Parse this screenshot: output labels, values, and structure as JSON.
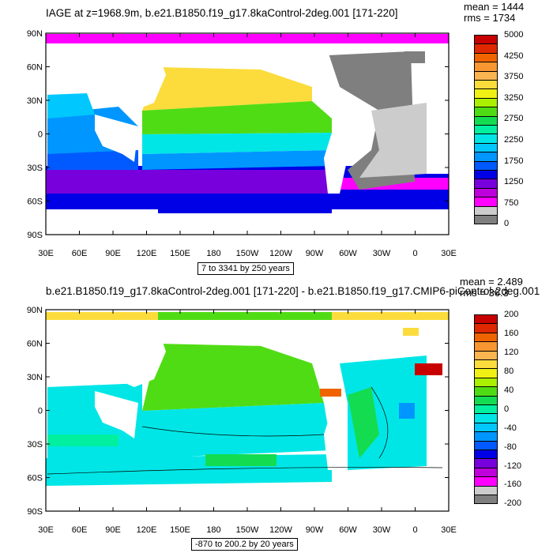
{
  "top": {
    "title": "IAGE at z=1968.9m, b.e21.B1850.f19_g17.8kaControl-2deg.001 [171-220]",
    "stats": {
      "mean": "mean = 1444",
      "rms": "rms = 1734"
    },
    "range_label": "7 to 3341 by 250 years",
    "colorbar": {
      "labels": [
        "5000",
        "4250",
        "3750",
        "3250",
        "2750",
        "2250",
        "1750",
        "1250",
        "750",
        "0"
      ],
      "colors": [
        "#c80000",
        "#e02800",
        "#f06400",
        "#f89632",
        "#fab450",
        "#fcdc3c",
        "#f0f014",
        "#aaf000",
        "#50dc14",
        "#14dc50",
        "#00f0a0",
        "#00e6e6",
        "#00c8ff",
        "#0096ff",
        "#005aff",
        "#0000e6",
        "#7800dc",
        "#be00dc",
        "#ff00ff",
        "#cccccc",
        "#7f7f7f"
      ]
    }
  },
  "bottom": {
    "title": "b.e21.B1850.f19_g17.8kaControl-2deg.001 [171-220] - b.e21.B1850.f19_g17.CMIP6-piControl-2deg.001",
    "stats": {
      "mean": "mean = 2.489",
      "rms": "rms = 36.3"
    },
    "range_label": "-870 to 200.2 by 20 years",
    "colorbar": {
      "labels": [
        "200",
        "160",
        "120",
        "80",
        "40",
        "0",
        "-40",
        "-80",
        "-120",
        "-160",
        "-200"
      ],
      "colors": [
        "#c80000",
        "#e02800",
        "#f06400",
        "#f89632",
        "#fab450",
        "#fcdc3c",
        "#f0f014",
        "#aaf000",
        "#50dc14",
        "#14dc50",
        "#00f0a0",
        "#00e6e6",
        "#00c8ff",
        "#0096ff",
        "#005aff",
        "#0000e6",
        "#7800dc",
        "#be00dc",
        "#ff00ff",
        "#cccccc",
        "#7f7f7f"
      ]
    }
  },
  "axes": {
    "lat_labels": [
      "90N",
      "60N",
      "30N",
      "0",
      "30S",
      "60S",
      "90S"
    ],
    "lon_labels": [
      "30E",
      "60E",
      "90E",
      "120E",
      "150E",
      "180",
      "150W",
      "120W",
      "90W",
      "60W",
      "30W",
      "0",
      "30E"
    ]
  }
}
